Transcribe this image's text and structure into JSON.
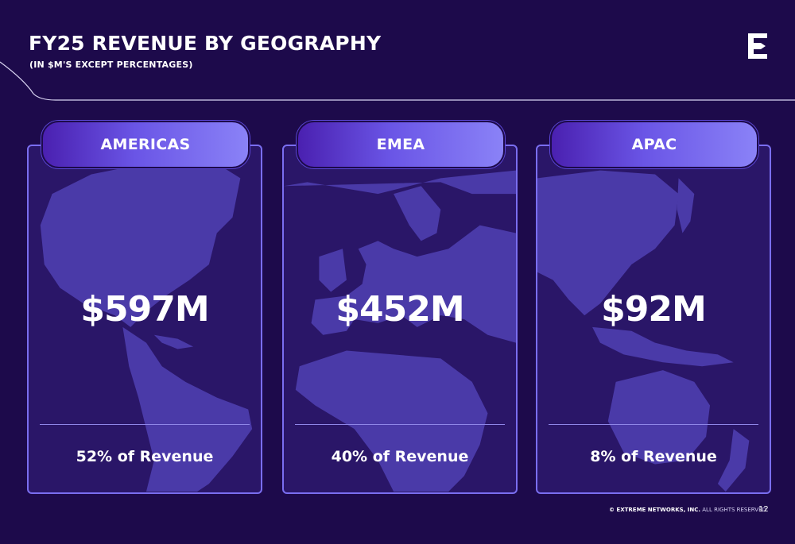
{
  "header": {
    "title": "FY25 REVENUE BY GEOGRAPHY",
    "subtitle": "(IN $M'S EXCEPT PERCENTAGES)"
  },
  "logo": {
    "icon": "extreme-networks-e-logo"
  },
  "regions": [
    {
      "name": "AMERICAS",
      "amount": "$597M",
      "share": "52% of Revenue"
    },
    {
      "name": "EMEA",
      "amount": "$452M",
      "share": "40% of Revenue"
    },
    {
      "name": "APAC",
      "amount": "$92M",
      "share": "8% of Revenue"
    }
  ],
  "footer": {
    "copyright_bold": "© EXTREME NETWORKS, INC.",
    "copyright_rest": " ALL RIGHTS RESERVED.",
    "page_number": "12"
  },
  "colors": {
    "background": "#1d0a4b",
    "card_border": "#7a6ef0",
    "map_land": "#4a3aa8",
    "tab_gradient_start": "#4a20b0",
    "tab_gradient_end": "#8a82f7"
  }
}
